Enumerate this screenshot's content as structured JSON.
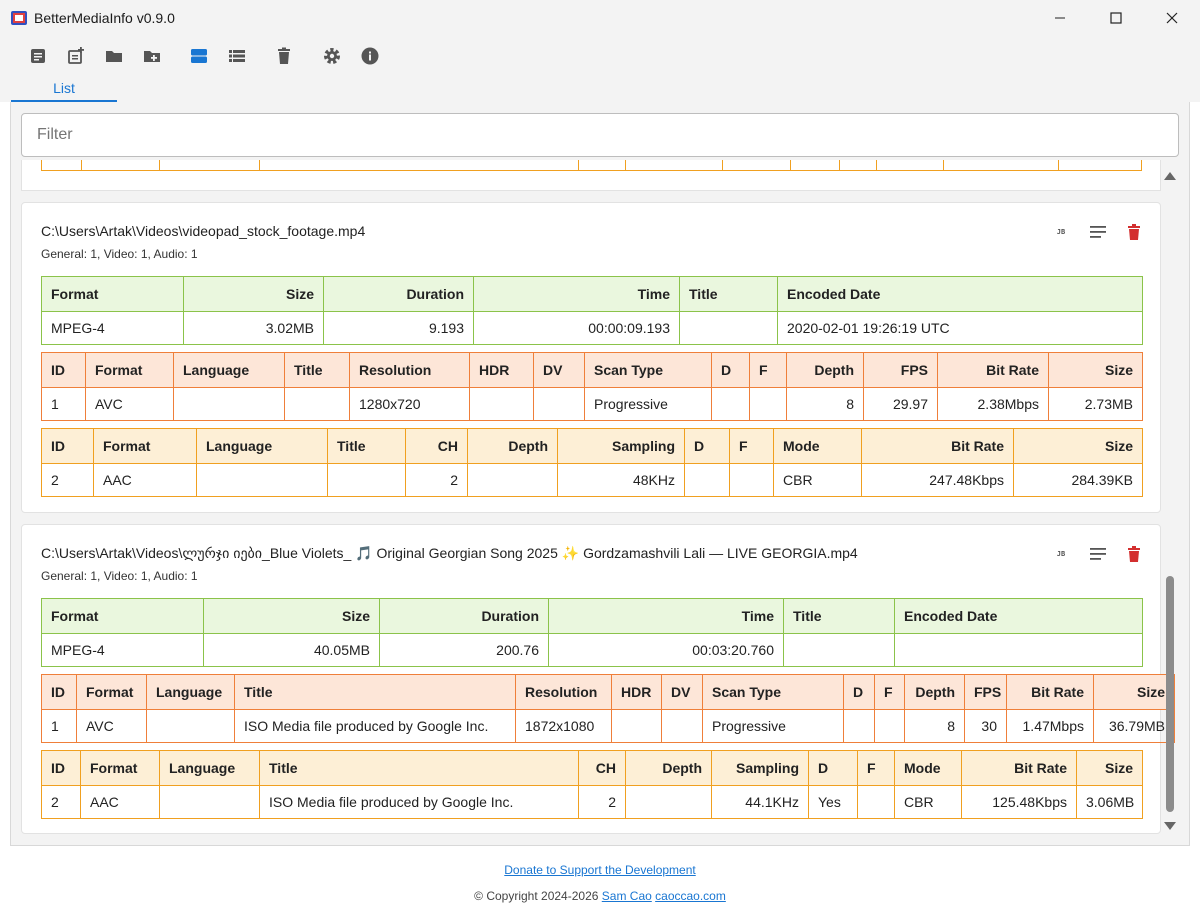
{
  "window": {
    "title": "BetterMediaInfo v0.9.0"
  },
  "toolbar": {
    "icons": [
      "add-file-icon",
      "add-note-icon",
      "open-folder-icon",
      "add-folder-icon",
      "card-view-icon",
      "list-view-icon",
      "delete-icon",
      "settings-icon",
      "info-icon"
    ],
    "active": "card-view-icon",
    "accent": "#1976d2"
  },
  "tabs": [
    {
      "label": "List"
    }
  ],
  "filter": {
    "placeholder": "Filter",
    "value": ""
  },
  "files": [
    {
      "path": "C:\\Users\\Artak\\Videos\\videopad_stock_footage.mp4",
      "summary": "General: 1, Video: 1, Audio: 1",
      "general": {
        "headers": [
          "Format",
          "Size",
          "Duration",
          "Time",
          "Title",
          "Encoded Date"
        ],
        "row": [
          "MPEG-4",
          "3.02MB",
          "9.193",
          "00:00:09.193",
          "",
          "2020-02-01 19:26:19 UTC"
        ]
      },
      "video": {
        "headers": [
          "ID",
          "Format",
          "Language",
          "Title",
          "Resolution",
          "HDR",
          "DV",
          "Scan Type",
          "D",
          "F",
          "Depth",
          "FPS",
          "Bit Rate",
          "Size"
        ],
        "row": [
          "1",
          "AVC",
          "",
          "",
          "1280x720",
          "",
          "",
          "Progressive",
          "",
          "",
          "8",
          "29.97",
          "2.38Mbps",
          "2.73MB"
        ]
      },
      "audio": {
        "headers": [
          "ID",
          "Format",
          "Language",
          "Title",
          "CH",
          "Depth",
          "Sampling",
          "D",
          "F",
          "Mode",
          "Bit Rate",
          "Size"
        ],
        "row": [
          "2",
          "AAC",
          "",
          "",
          "2",
          "",
          "48KHz",
          "",
          "",
          "CBR",
          "247.48Kbps",
          "284.39KB"
        ]
      }
    },
    {
      "path": "C:\\Users\\Artak\\Videos\\ლურჯი იები_Blue Violets_ 🎵 Original Georgian Song 2025 ✨ Gordzamashvili Lali — LIVE GEORGIA.mp4",
      "summary": "General: 1, Video: 1, Audio: 1",
      "general": {
        "headers": [
          "Format",
          "Size",
          "Duration",
          "Time",
          "Title",
          "Encoded Date"
        ],
        "row": [
          "MPEG-4",
          "40.05MB",
          "200.76",
          "00:03:20.760",
          "",
          ""
        ]
      },
      "video": {
        "headers": [
          "ID",
          "Format",
          "Language",
          "Title",
          "Resolution",
          "HDR",
          "DV",
          "Scan Type",
          "D",
          "F",
          "Depth",
          "FPS",
          "Bit Rate",
          "Size"
        ],
        "row": [
          "1",
          "AVC",
          "",
          "ISO Media file produced by Google Inc.",
          "1872x1080",
          "",
          "",
          "Progressive",
          "",
          "",
          "8",
          "30",
          "1.47Mbps",
          "36.79MB"
        ]
      },
      "audio": {
        "headers": [
          "ID",
          "Format",
          "Language",
          "Title",
          "CH",
          "Depth",
          "Sampling",
          "D",
          "F",
          "Mode",
          "Bit Rate",
          "Size"
        ],
        "row": [
          "2",
          "AAC",
          "",
          "ISO Media file produced by Google Inc.",
          "2",
          "",
          "44.1KHz",
          "Yes",
          "",
          "CBR",
          "125.48Kbps",
          "3.06MB"
        ]
      }
    }
  ],
  "card_actions": [
    "json-icon",
    "details-icon",
    "delete-icon"
  ],
  "footer": {
    "donate_link": "Donate to Support the Development",
    "copyright": "© Copyright 2024-2026",
    "author_link": "Sam Cao",
    "site_link": "caoccao.com"
  },
  "colors": {
    "general_border": "#8bc34a",
    "general_header": "#eaf7de",
    "video_border": "#ef7f3a",
    "video_header": "#fde6d8",
    "audio_border": "#f0a020",
    "audio_header": "#fdefd6",
    "delete_red": "#d32f2f"
  }
}
